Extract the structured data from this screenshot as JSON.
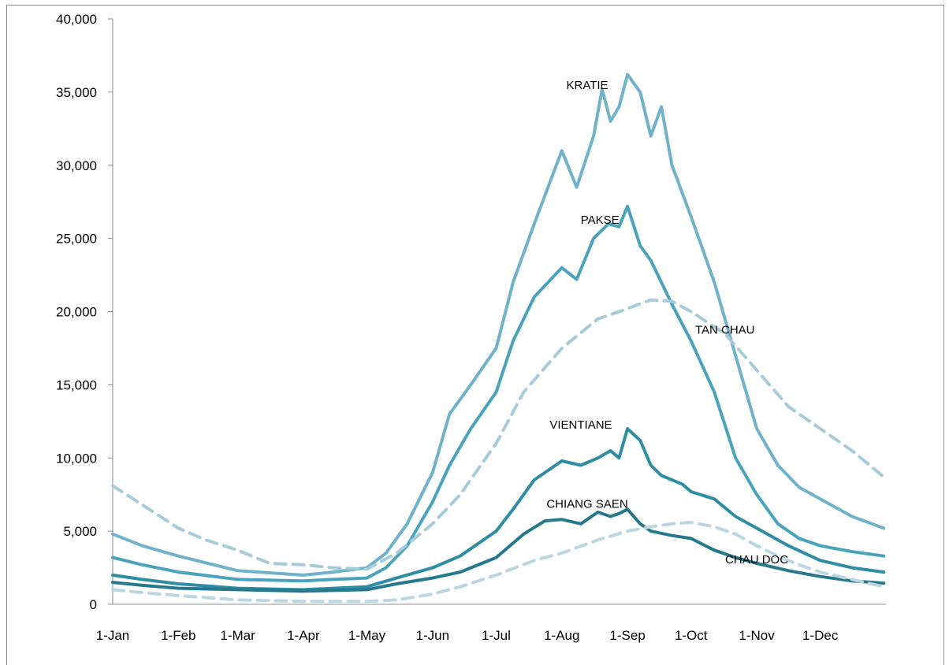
{
  "chart_data": {
    "type": "line",
    "title": "",
    "xlabel": "",
    "ylabel": "",
    "ylim": [
      0,
      40000
    ],
    "y_ticks": [
      0,
      5000,
      10000,
      15000,
      20000,
      25000,
      30000,
      35000,
      40000
    ],
    "y_tick_labels": [
      "0",
      "5,000",
      "10,000",
      "15,000",
      "20,000",
      "25,000",
      "30,000",
      "35,000",
      "40,000"
    ],
    "x_tick_labels": [
      "1-Jan",
      "1-Feb",
      "1-Mar",
      "1-Apr",
      "1-May",
      "1-Jun",
      "1-Jul",
      "1-Aug",
      "1-Sep",
      "1-Oct",
      "1-Nov",
      "1-Dec"
    ],
    "x_unit": "day of year",
    "x_ticks": [
      1,
      32,
      60,
      91,
      121,
      152,
      182,
      213,
      244,
      274,
      305,
      335
    ],
    "xlim": [
      1,
      366
    ],
    "grid": false,
    "legend": "none (series labelled on plot)",
    "series": [
      {
        "name": "KRATIE",
        "color": "#6fb2c9",
        "dash": false,
        "label_at": [
          225,
          35200
        ],
        "points": [
          [
            1,
            4800
          ],
          [
            15,
            4000
          ],
          [
            32,
            3300
          ],
          [
            60,
            2300
          ],
          [
            91,
            2000
          ],
          [
            105,
            2200
          ],
          [
            121,
            2500
          ],
          [
            130,
            3500
          ],
          [
            140,
            5500
          ],
          [
            152,
            9000
          ],
          [
            160,
            13000
          ],
          [
            170,
            15000
          ],
          [
            182,
            17500
          ],
          [
            190,
            22000
          ],
          [
            200,
            26000
          ],
          [
            213,
            31000
          ],
          [
            220,
            28500
          ],
          [
            228,
            32000
          ],
          [
            232,
            35200
          ],
          [
            236,
            33000
          ],
          [
            240,
            34000
          ],
          [
            244,
            36200
          ],
          [
            250,
            35000
          ],
          [
            255,
            32000
          ],
          [
            260,
            34000
          ],
          [
            265,
            30000
          ],
          [
            274,
            26500
          ],
          [
            285,
            22000
          ],
          [
            295,
            17000
          ],
          [
            305,
            12000
          ],
          [
            315,
            9500
          ],
          [
            325,
            8000
          ],
          [
            335,
            7200
          ],
          [
            350,
            6000
          ],
          [
            365,
            5200
          ]
        ]
      },
      {
        "name": "PAKSE",
        "color": "#4aa3bd",
        "dash": false,
        "label_at": [
          231,
          26000
        ],
        "points": [
          [
            1,
            3200
          ],
          [
            15,
            2700
          ],
          [
            32,
            2200
          ],
          [
            60,
            1700
          ],
          [
            91,
            1600
          ],
          [
            105,
            1700
          ],
          [
            121,
            1800
          ],
          [
            130,
            2500
          ],
          [
            140,
            4000
          ],
          [
            152,
            7000
          ],
          [
            160,
            9500
          ],
          [
            170,
            12000
          ],
          [
            182,
            14500
          ],
          [
            190,
            18000
          ],
          [
            200,
            21000
          ],
          [
            213,
            23000
          ],
          [
            220,
            22200
          ],
          [
            228,
            25000
          ],
          [
            235,
            26000
          ],
          [
            240,
            25800
          ],
          [
            244,
            27200
          ],
          [
            250,
            24500
          ],
          [
            255,
            23500
          ],
          [
            265,
            20500
          ],
          [
            274,
            18000
          ],
          [
            285,
            14500
          ],
          [
            295,
            10000
          ],
          [
            305,
            7500
          ],
          [
            315,
            5500
          ],
          [
            325,
            4500
          ],
          [
            335,
            4000
          ],
          [
            350,
            3600
          ],
          [
            365,
            3300
          ]
        ]
      },
      {
        "name": "TAN CHAU",
        "color": "#a6cbd9",
        "dash": true,
        "label_at": [
          290,
          18500
        ],
        "points": [
          [
            1,
            8100
          ],
          [
            15,
            6800
          ],
          [
            32,
            5200
          ],
          [
            45,
            4400
          ],
          [
            60,
            3700
          ],
          [
            75,
            2800
          ],
          [
            91,
            2700
          ],
          [
            105,
            2500
          ],
          [
            121,
            2400
          ],
          [
            135,
            3500
          ],
          [
            152,
            5500
          ],
          [
            165,
            7500
          ],
          [
            182,
            11000
          ],
          [
            195,
            14500
          ],
          [
            213,
            17500
          ],
          [
            230,
            19500
          ],
          [
            244,
            20200
          ],
          [
            255,
            20800
          ],
          [
            265,
            20700
          ],
          [
            274,
            20000
          ],
          [
            290,
            18500
          ],
          [
            305,
            16000
          ],
          [
            320,
            13500
          ],
          [
            335,
            12000
          ],
          [
            350,
            10500
          ],
          [
            365,
            8700
          ]
        ]
      },
      {
        "name": "VIENTIANE",
        "color": "#2e8ca3",
        "dash": false,
        "label_at": [
          222,
          12000
        ],
        "points": [
          [
            1,
            2000
          ],
          [
            15,
            1700
          ],
          [
            32,
            1400
          ],
          [
            60,
            1100
          ],
          [
            91,
            1000
          ],
          [
            105,
            1100
          ],
          [
            121,
            1200
          ],
          [
            135,
            1800
          ],
          [
            152,
            2500
          ],
          [
            165,
            3300
          ],
          [
            182,
            5000
          ],
          [
            190,
            6500
          ],
          [
            200,
            8500
          ],
          [
            213,
            9800
          ],
          [
            222,
            9500
          ],
          [
            230,
            10000
          ],
          [
            236,
            10500
          ],
          [
            240,
            10000
          ],
          [
            244,
            12000
          ],
          [
            250,
            11200
          ],
          [
            255,
            9500
          ],
          [
            260,
            8800
          ],
          [
            270,
            8200
          ],
          [
            274,
            7700
          ],
          [
            285,
            7200
          ],
          [
            295,
            6000
          ],
          [
            305,
            5200
          ],
          [
            320,
            4000
          ],
          [
            335,
            3000
          ],
          [
            350,
            2500
          ],
          [
            365,
            2200
          ]
        ]
      },
      {
        "name": "CHIANG SAEN",
        "color": "#26788c",
        "dash": false,
        "label_at": [
          225,
          6600
        ],
        "points": [
          [
            1,
            1500
          ],
          [
            15,
            1300
          ],
          [
            32,
            1100
          ],
          [
            60,
            1000
          ],
          [
            91,
            900
          ],
          [
            105,
            950
          ],
          [
            121,
            1000
          ],
          [
            135,
            1400
          ],
          [
            152,
            1800
          ],
          [
            165,
            2200
          ],
          [
            182,
            3200
          ],
          [
            195,
            4800
          ],
          [
            205,
            5700
          ],
          [
            213,
            5800
          ],
          [
            222,
            5500
          ],
          [
            230,
            6300
          ],
          [
            236,
            6000
          ],
          [
            240,
            6200
          ],
          [
            244,
            6500
          ],
          [
            250,
            5500
          ],
          [
            255,
            5000
          ],
          [
            265,
            4700
          ],
          [
            274,
            4500
          ],
          [
            285,
            3700
          ],
          [
            295,
            3200
          ],
          [
            305,
            2800
          ],
          [
            320,
            2300
          ],
          [
            335,
            1900
          ],
          [
            350,
            1600
          ],
          [
            365,
            1450
          ]
        ]
      },
      {
        "name": "CHAU DOC",
        "color": "#b9d6e1",
        "dash": true,
        "label_at": [
          305,
          2800
        ],
        "points": [
          [
            1,
            1000
          ],
          [
            15,
            800
          ],
          [
            32,
            600
          ],
          [
            60,
            300
          ],
          [
            91,
            200
          ],
          [
            105,
            200
          ],
          [
            121,
            200
          ],
          [
            135,
            300
          ],
          [
            152,
            700
          ],
          [
            165,
            1200
          ],
          [
            182,
            2000
          ],
          [
            200,
            3000
          ],
          [
            213,
            3500
          ],
          [
            230,
            4400
          ],
          [
            244,
            5000
          ],
          [
            255,
            5300
          ],
          [
            265,
            5500
          ],
          [
            274,
            5600
          ],
          [
            285,
            5300
          ],
          [
            295,
            4800
          ],
          [
            305,
            4000
          ],
          [
            315,
            3300
          ],
          [
            325,
            2700
          ],
          [
            335,
            2200
          ],
          [
            350,
            1700
          ],
          [
            365,
            1200
          ]
        ]
      }
    ]
  }
}
